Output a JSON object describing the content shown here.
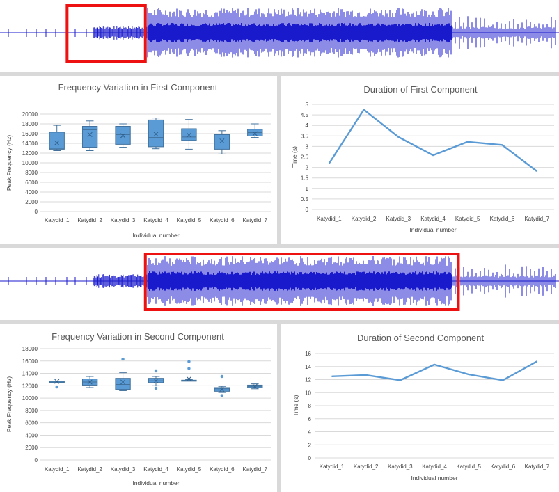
{
  "colors": {
    "waveform": "#1a1acd",
    "highlight": "#ee1111",
    "box_fill": "#5b9bd5",
    "box_edge": "#41719c",
    "line": "#5b9bd5",
    "grid": "#d9d9d9",
    "text": "#404040"
  },
  "waveform_strips": [
    {
      "highlight_range": [
        0.12,
        0.26
      ]
    },
    {
      "highlight_range": [
        0.26,
        0.82
      ]
    }
  ],
  "chart_data": [
    {
      "type": "box",
      "title": "Frequency Variation in First Component",
      "xlabel": "Individual number",
      "ylabel": "Peak Frequency (Hz)",
      "ylim": [
        0,
        20000
      ],
      "yticks": [
        0,
        2000,
        4000,
        6000,
        8000,
        10000,
        12000,
        14000,
        16000,
        18000,
        20000
      ],
      "grid": true,
      "categories": [
        "Katydid_1",
        "Katydid_2",
        "Katydid_3",
        "Katydid_4",
        "Katydid_5",
        "Katydid_6",
        "Katydid_7"
      ],
      "boxes": [
        {
          "min": 12500,
          "q1": 12800,
          "median": 13000,
          "q3": 16300,
          "max": 17700,
          "mean": 14100,
          "outliers": []
        },
        {
          "min": 12500,
          "q1": 13200,
          "median": 16800,
          "q3": 17500,
          "max": 18600,
          "mean": 15800,
          "outliers": []
        },
        {
          "min": 13200,
          "q1": 13800,
          "median": 15800,
          "q3": 17500,
          "max": 18000,
          "mean": 15600,
          "outliers": []
        },
        {
          "min": 12900,
          "q1": 13300,
          "median": 15200,
          "q3": 18800,
          "max": 19200,
          "mean": 15900,
          "outliers": []
        },
        {
          "min": 12800,
          "q1": 14600,
          "median": 15300,
          "q3": 17000,
          "max": 18900,
          "mean": 15700,
          "outliers": []
        },
        {
          "min": 11800,
          "q1": 12800,
          "median": 14500,
          "q3": 15800,
          "max": 16600,
          "mean": 14500,
          "outliers": []
        },
        {
          "min": 15200,
          "q1": 15500,
          "median": 16200,
          "q3": 16900,
          "max": 18000,
          "mean": 16000,
          "outliers": []
        }
      ]
    },
    {
      "type": "line",
      "title": "Duration of First Component",
      "xlabel": "Individual number",
      "ylabel": "Time (s)",
      "ylim": [
        0,
        5
      ],
      "yticks": [
        "0",
        "0.5",
        "1",
        "1.5",
        "2",
        "2.5",
        "3",
        "3.5",
        "4",
        "4.5",
        "5"
      ],
      "grid": true,
      "categories": [
        "Katydid_1",
        "Katydid_2",
        "Katydid_3",
        "Katydid_4",
        "Katydid_5",
        "Katydid_6",
        "Katydid_7"
      ],
      "values": [
        2.2,
        4.75,
        3.45,
        2.58,
        3.22,
        3.07,
        1.82
      ]
    },
    {
      "type": "box",
      "title": "Frequency Variation in Second Component",
      "xlabel": "Individual number",
      "ylabel": "Peak Frequency (Hz)",
      "ylim": [
        0,
        18000
      ],
      "yticks": [
        0,
        2000,
        4000,
        6000,
        8000,
        10000,
        12000,
        14000,
        16000,
        18000
      ],
      "grid": true,
      "categories": [
        "Katydid_1",
        "Katydid_2",
        "Katydid_3",
        "Katydid_4",
        "Katydid_5",
        "Katydid_6",
        "Katydid_7"
      ],
      "boxes": [
        {
          "min": 12700,
          "q1": 12700,
          "median": 12700,
          "q3": 12700,
          "max": 12700,
          "mean": 12700,
          "outliers": [
            11800
          ]
        },
        {
          "min": 11700,
          "q1": 12100,
          "median": 12600,
          "q3": 13100,
          "max": 13500,
          "mean": 12600,
          "outliers": []
        },
        {
          "min": 11200,
          "q1": 11400,
          "median": 12200,
          "q3": 13200,
          "max": 14100,
          "mean": 12600,
          "outliers": [
            16300
          ]
        },
        {
          "min": 12000,
          "q1": 12500,
          "median": 12800,
          "q3": 13200,
          "max": 13500,
          "mean": 12800,
          "outliers": [
            14400,
            11600
          ]
        },
        {
          "min": 12800,
          "q1": 12800,
          "median": 12800,
          "q3": 12900,
          "max": 13000,
          "mean": 13100,
          "outliers": [
            15900,
            14800
          ]
        },
        {
          "min": 10900,
          "q1": 11100,
          "median": 11500,
          "q3": 11700,
          "max": 11900,
          "mean": 11400,
          "outliers": [
            13500,
            10400
          ]
        },
        {
          "min": 11500,
          "q1": 11700,
          "median": 11900,
          "q3": 12100,
          "max": 12300,
          "mean": 11900,
          "outliers": []
        }
      ]
    },
    {
      "type": "line",
      "title": "Duration of Second Component",
      "xlabel": "Individual number",
      "ylabel": "Time (s)",
      "ylim": [
        0,
        16
      ],
      "yticks": [
        "0",
        "2",
        "4",
        "6",
        "8",
        "10",
        "12",
        "14",
        "16"
      ],
      "grid": true,
      "categories": [
        "Katydid_1",
        "Katydid_2",
        "Katydid_3",
        "Katydid_4",
        "Katydid_5",
        "Katydid_6",
        "Katydid_7"
      ],
      "values": [
        12.5,
        12.7,
        11.9,
        14.3,
        12.8,
        11.9,
        14.8
      ]
    }
  ]
}
